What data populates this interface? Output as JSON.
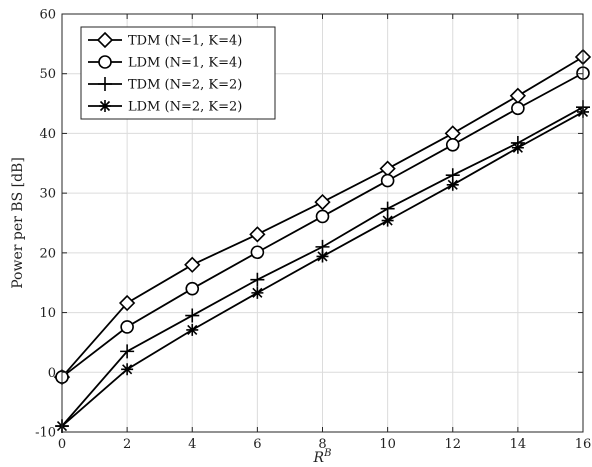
{
  "chart_data": {
    "type": "line",
    "xlabel_base": "R",
    "xlabel_sup": "B",
    "ylabel": "Power per BS [dB]",
    "xlim": [
      0,
      16
    ],
    "ylim": [
      -10,
      60
    ],
    "x_ticks": [
      "0",
      "2",
      "4",
      "6",
      "8",
      "10",
      "12",
      "14",
      "16"
    ],
    "y_ticks": [
      "-10",
      "0",
      "10",
      "20",
      "30",
      "40",
      "50",
      "60"
    ],
    "grid": true,
    "legend_position": "top-left",
    "x": [
      0,
      2,
      4,
      6,
      8,
      10,
      12,
      14,
      16
    ],
    "series": [
      {
        "name": "TDM (N=1, K=4)",
        "marker": "diamond",
        "values": [
          -0.8,
          11.6,
          18.0,
          23.1,
          28.5,
          34.1,
          40.0,
          46.3,
          52.8
        ]
      },
      {
        "name": "LDM (N=1, K=4)",
        "marker": "circle",
        "values": [
          -0.8,
          7.6,
          14.0,
          20.1,
          26.1,
          32.1,
          38.1,
          44.2,
          50.1
        ]
      },
      {
        "name": "TDM (N=2, K=2)",
        "marker": "plus",
        "values": [
          -9.0,
          3.5,
          9.5,
          15.5,
          21.0,
          27.4,
          33.0,
          38.4,
          44.4
        ]
      },
      {
        "name": "LDM (N=2, K=2)",
        "marker": "asterisk",
        "values": [
          -9.0,
          0.5,
          7.1,
          13.3,
          19.4,
          25.4,
          31.4,
          37.6,
          43.6
        ]
      }
    ]
  }
}
